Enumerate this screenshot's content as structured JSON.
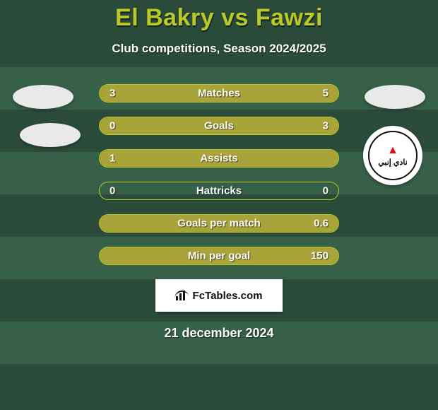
{
  "title": "El Bakry vs Fawzi",
  "subtitle": "Club competitions, Season 2024/2025",
  "footer_brand": "FcTables.com",
  "date_text": "21 december 2024",
  "colors": {
    "accent": "#b9c92a",
    "bar_fill": "#a9a43a",
    "bg_dark": "#2a4a3a",
    "bg_stripe": "#366048",
    "text": "#ffffff"
  },
  "bars": [
    {
      "label": "Matches",
      "left": "3",
      "right": "5",
      "left_pct": 37.5,
      "right_pct": 62.5
    },
    {
      "label": "Goals",
      "left": "0",
      "right": "3",
      "left_pct": 0,
      "right_pct": 100
    },
    {
      "label": "Assists",
      "left": "1",
      "right": "",
      "left_pct": 100,
      "right_pct": 0
    },
    {
      "label": "Hattricks",
      "left": "0",
      "right": "0",
      "left_pct": 0,
      "right_pct": 0
    },
    {
      "label": "Goals per match",
      "left": "",
      "right": "0.6",
      "left_pct": 0,
      "right_pct": 100
    },
    {
      "label": "Min per goal",
      "left": "",
      "right": "150",
      "left_pct": 0,
      "right_pct": 100
    }
  ],
  "badge_text": "نادي إنبي"
}
